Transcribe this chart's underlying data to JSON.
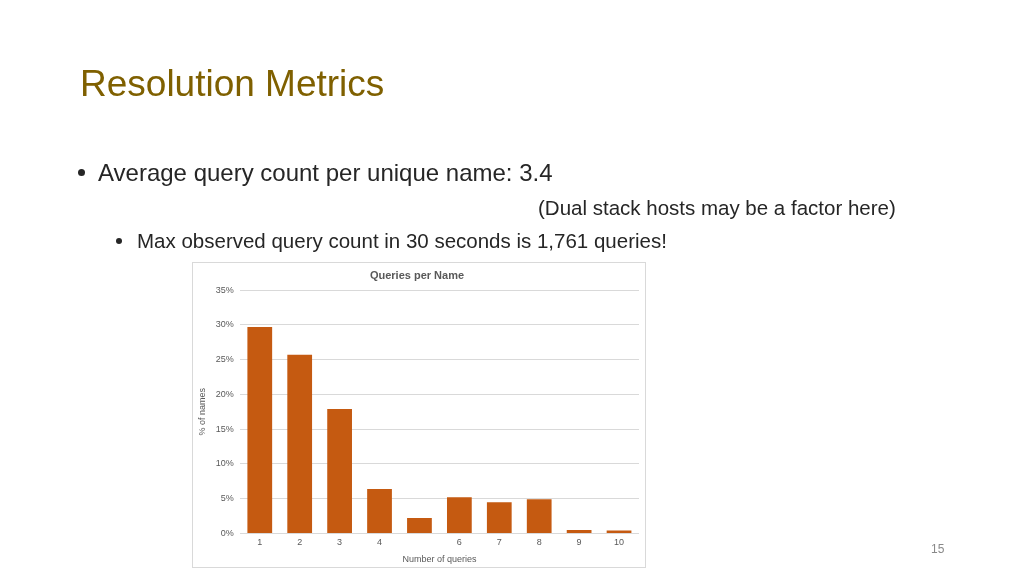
{
  "chart_data": {
    "type": "bar",
    "title": "Resolution Metrics",
    "subtitle": "Queries per Name",
    "xlabel": "Number of queries",
    "ylabel": "% of names",
    "annotations": [
      "Average query count per unique name: 3.4",
      "(Dual stack hosts may be a factor here)",
      "Max observed query count in 30 seconds is 1,761 queries!",
      "15"
    ],
    "categories": [
      "1",
      "2",
      "3",
      "4",
      null,
      "6",
      "7",
      "8",
      "9",
      "10"
    ],
    "values": [
      29.7,
      25.7,
      17.9,
      6.4,
      2.2,
      5.2,
      4.5,
      4.9,
      0.5,
      0.4
    ],
    "color": "#c55a11",
    "ylim": [
      0,
      35
    ],
    "yticks": [
      {
        "value": 0,
        "label": "0%"
      },
      {
        "value": 5,
        "label": "5%"
      },
      {
        "value": 10,
        "label": "10%"
      },
      {
        "value": 15,
        "label": "15%"
      },
      {
        "value": 20,
        "label": "20%"
      },
      {
        "value": 25,
        "label": "25%"
      },
      {
        "value": 30,
        "label": "30%"
      },
      {
        "value": 35,
        "label": "35%"
      }
    ],
    "grid": "y"
  }
}
